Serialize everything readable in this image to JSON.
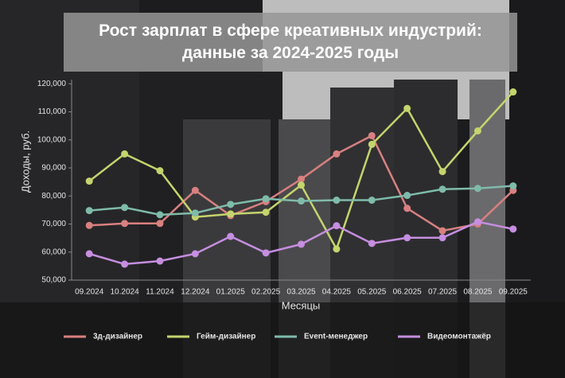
{
  "chart_data": {
    "type": "line",
    "title": "Рост зарплат в сфере креативных индустрий: данные за 2024-2025 годы",
    "x_label": "Месяцы",
    "y_label": "Доходы, руб.",
    "categories": [
      "09.2024",
      "10.2024",
      "11.2024",
      "12.2024",
      "01.2025",
      "02.2025",
      "03.2025",
      "04.2025",
      "05.2025",
      "06.2025",
      "07.2025",
      "08.2025",
      "09.2025"
    ],
    "series": [
      {
        "name": "3д-дизайнер",
        "color": "#d98080",
        "values": [
          69500,
          70200,
          70200,
          82000,
          73000,
          78000,
          86000,
          95000,
          101500,
          75600,
          67600,
          70000,
          82000
        ]
      },
      {
        "name": "Гейм-дизайнер",
        "color": "#c5d46c",
        "values": [
          85300,
          95000,
          89000,
          72500,
          73600,
          74200,
          83900,
          61100,
          98400,
          111200,
          88700,
          103200,
          117100
        ]
      },
      {
        "name": "Event-менеджер",
        "color": "#7fbbaa",
        "values": [
          74800,
          75900,
          73300,
          73900,
          77000,
          79000,
          78200,
          78500,
          78500,
          80200,
          82400,
          82700,
          83600
        ]
      },
      {
        "name": "Видеомонтажёр",
        "color": "#c68ee0",
        "values": [
          59400,
          55700,
          56800,
          59400,
          65600,
          59700,
          62800,
          69400,
          63100,
          65100,
          65100,
          70800,
          68200
        ]
      }
    ],
    "ylim": [
      50000,
      121500
    ],
    "yticks": [
      {
        "value": 50000,
        "label": "50,000"
      },
      {
        "value": 60000,
        "label": "60,000"
      },
      {
        "value": 70000,
        "label": "70,000"
      },
      {
        "value": 80000,
        "label": "80,000"
      },
      {
        "value": 90000,
        "label": "90,000"
      },
      {
        "value": 100000,
        "label": "100,000"
      },
      {
        "value": 110000,
        "label": "110,000"
      },
      {
        "value": 120000,
        "label": "120,000"
      }
    ],
    "legend": "bottom"
  }
}
